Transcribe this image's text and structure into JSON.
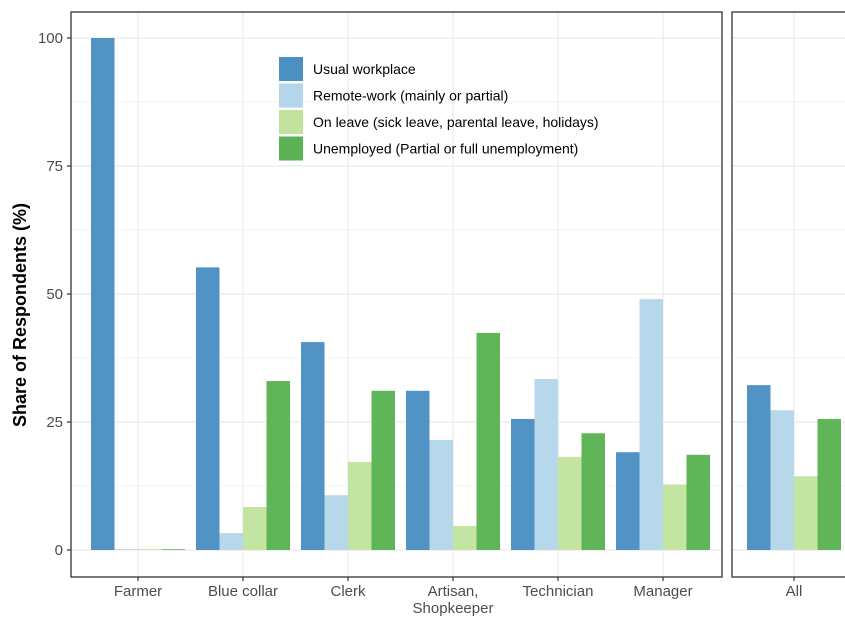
{
  "chart_data": {
    "type": "bar",
    "ylabel": "Share of Respondents (%)",
    "ylim": [
      -4,
      105
    ],
    "y_ticks": [
      0,
      25,
      50,
      75,
      100
    ],
    "grid": true,
    "legend_position": "top-center",
    "series": [
      {
        "name": "Usual workplace",
        "color": "#4a90c2"
      },
      {
        "name": "Remote-work (mainly or partial)",
        "color": "#b5d6ea"
      },
      {
        "name": "On leave (sick leave, parental leave, holidays)",
        "color": "#c2e39e"
      },
      {
        "name": "Unemployed (Partial or full unemployment)",
        "color": "#5cb354"
      }
    ],
    "panels": [
      {
        "categories": [
          "Farmer",
          "Blue collar",
          "Clerk",
          "Artisan,\nShopkeeper",
          "Technician",
          "Manager"
        ],
        "values": [
          [
            100,
            55.2,
            40.6,
            31.1,
            25.6,
            19.1
          ],
          [
            0,
            3.3,
            10.7,
            21.5,
            33.4,
            49.0
          ],
          [
            0,
            8.4,
            17.2,
            4.7,
            18.2,
            12.8
          ],
          [
            0,
            33.0,
            31.1,
            42.4,
            22.8,
            18.6
          ]
        ]
      },
      {
        "categories": [
          "All"
        ],
        "values": [
          [
            32.2
          ],
          [
            27.3
          ],
          [
            14.4
          ],
          [
            25.6
          ]
        ]
      }
    ]
  }
}
